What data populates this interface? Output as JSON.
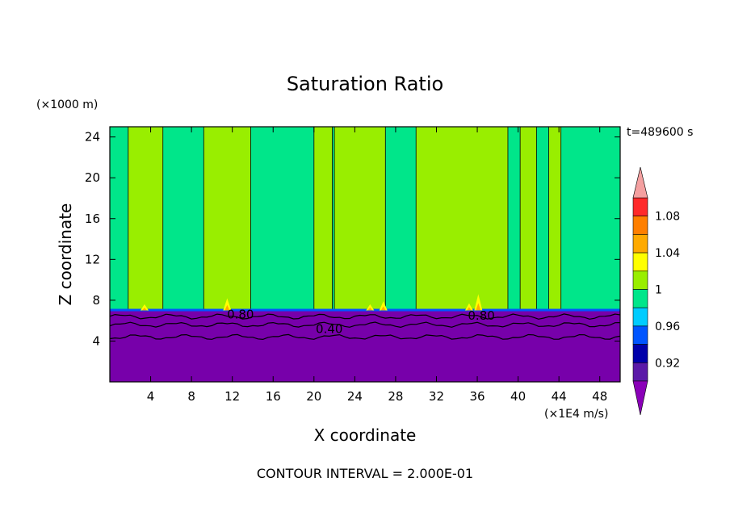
{
  "chart_data": {
    "type": "heatmap",
    "title": "Saturation Ratio",
    "xlabel": "X coordinate",
    "ylabel": "Z coordinate",
    "x_unit": "(×1E4 m/s)",
    "y_unit": "(×1000 m)",
    "time_label": "t=489600 s",
    "footer": "CONTOUR INTERVAL = 2.000E-01",
    "xlim": [
      0,
      50
    ],
    "ylim": [
      0,
      25
    ],
    "x_ticks": [
      4,
      8,
      12,
      16,
      20,
      24,
      28,
      32,
      36,
      40,
      44,
      48
    ],
    "y_ticks": [
      4,
      8,
      12,
      16,
      20,
      24
    ],
    "colors": {
      "deep_purple": "#7700aa",
      "purple": "#6a00a8",
      "aqua_green": "#00e68a",
      "yellow_green": "#99ee00",
      "yellow": "#ffff00",
      "orange": "#ffaa00",
      "red": "#ff2a2a",
      "pink": "#f4a0a0"
    },
    "colorbar": {
      "labels": [
        "1.08",
        "1.04",
        "1",
        "0.96",
        "0.92"
      ],
      "levels": [
        {
          "min": null,
          "max": 0.9,
          "color": "#8a00b8"
        },
        {
          "min": 0.9,
          "max": 0.92,
          "color": "#5b1aa8"
        },
        {
          "min": 0.92,
          "max": 0.94,
          "color": "#0000aa"
        },
        {
          "min": 0.94,
          "max": 0.96,
          "color": "#0055ff"
        },
        {
          "min": 0.96,
          "max": 0.98,
          "color": "#00ccff"
        },
        {
          "min": 0.98,
          "max": 1.0,
          "color": "#00e68a"
        },
        {
          "min": 1.0,
          "max": 1.02,
          "color": "#99ee00"
        },
        {
          "min": 1.02,
          "max": 1.04,
          "color": "#ffff00"
        },
        {
          "min": 1.04,
          "max": 1.06,
          "color": "#ffaa00"
        },
        {
          "min": 1.06,
          "max": 1.08,
          "color": "#ff7f00"
        },
        {
          "min": 1.08,
          "max": 1.1,
          "color": "#ff2a2a"
        },
        {
          "min": 1.1,
          "max": null,
          "color": "#f4a0a0"
        }
      ]
    },
    "regions": {
      "lower_layer": {
        "z_top": 7.0,
        "value_range": "< 0.90"
      },
      "upper_domain_background": {
        "value_range": "0.98–1.00"
      },
      "supersaturated_columns_x": [
        [
          1.8,
          5.2
        ],
        [
          9.2,
          13.8
        ],
        [
          20.0,
          21.8
        ],
        [
          22.0,
          27.0
        ],
        [
          30.0,
          39.0
        ],
        [
          40.2,
          41.8
        ],
        [
          43.0,
          44.2
        ]
      ]
    },
    "contour_labels": [
      {
        "text": "0.80",
        "x": 12.8,
        "z": 6.6
      },
      {
        "text": "0.40",
        "x": 21.5,
        "z": 5.2
      },
      {
        "text": "0.80",
        "x": 36.4,
        "z": 6.5
      }
    ]
  }
}
